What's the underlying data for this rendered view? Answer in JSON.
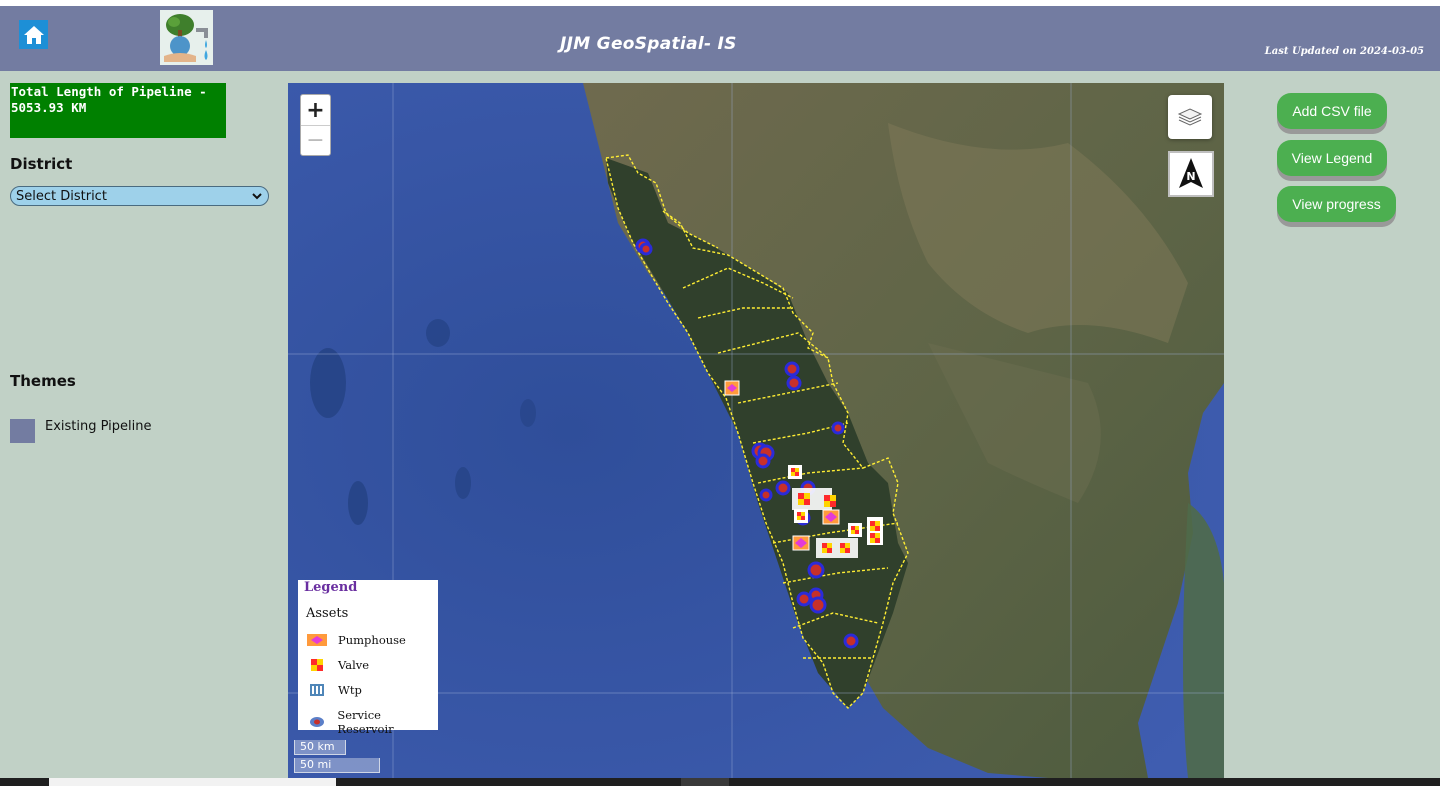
{
  "header": {
    "title": "JJM GeoSpatial- IS",
    "last_updated": "Last Updated on 2024-03-05",
    "home_icon": "home-icon",
    "logo_icon": "tree-water-logo"
  },
  "sidebar": {
    "pipeline_total": "Total Length of Pipeline - 5053.93 KM",
    "district_label": "District",
    "district_select_value": "Select District",
    "themes_label": "Themes",
    "themes": [
      {
        "label": "Existing Pipeline",
        "color": "#737ca1"
      }
    ]
  },
  "map": {
    "zoom_in": "+",
    "zoom_out": "−",
    "north_label": "N",
    "scale_km": "50 km",
    "scale_mi": "50 mi",
    "legend": {
      "title": "Legend",
      "subtitle": "Assets",
      "items": [
        {
          "label": "Pumphouse",
          "icon": "pumphouse-icon"
        },
        {
          "label": "Valve",
          "icon": "valve-icon"
        },
        {
          "label": "Wtp",
          "icon": "wtp-icon"
        },
        {
          "label": "Service Reservoir",
          "icon": "service-reservoir-icon"
        }
      ]
    }
  },
  "actions": {
    "add_csv": "Add CSV file",
    "view_legend": "View Legend",
    "view_progress": "View progress"
  },
  "colors": {
    "header_bg": "#737ca1",
    "page_bg": "#c1d1c6",
    "pipeline_box": "#008000",
    "action_button": "#4caf50",
    "boundary": "#ffee33",
    "reservoir": "#2b2bd8"
  }
}
